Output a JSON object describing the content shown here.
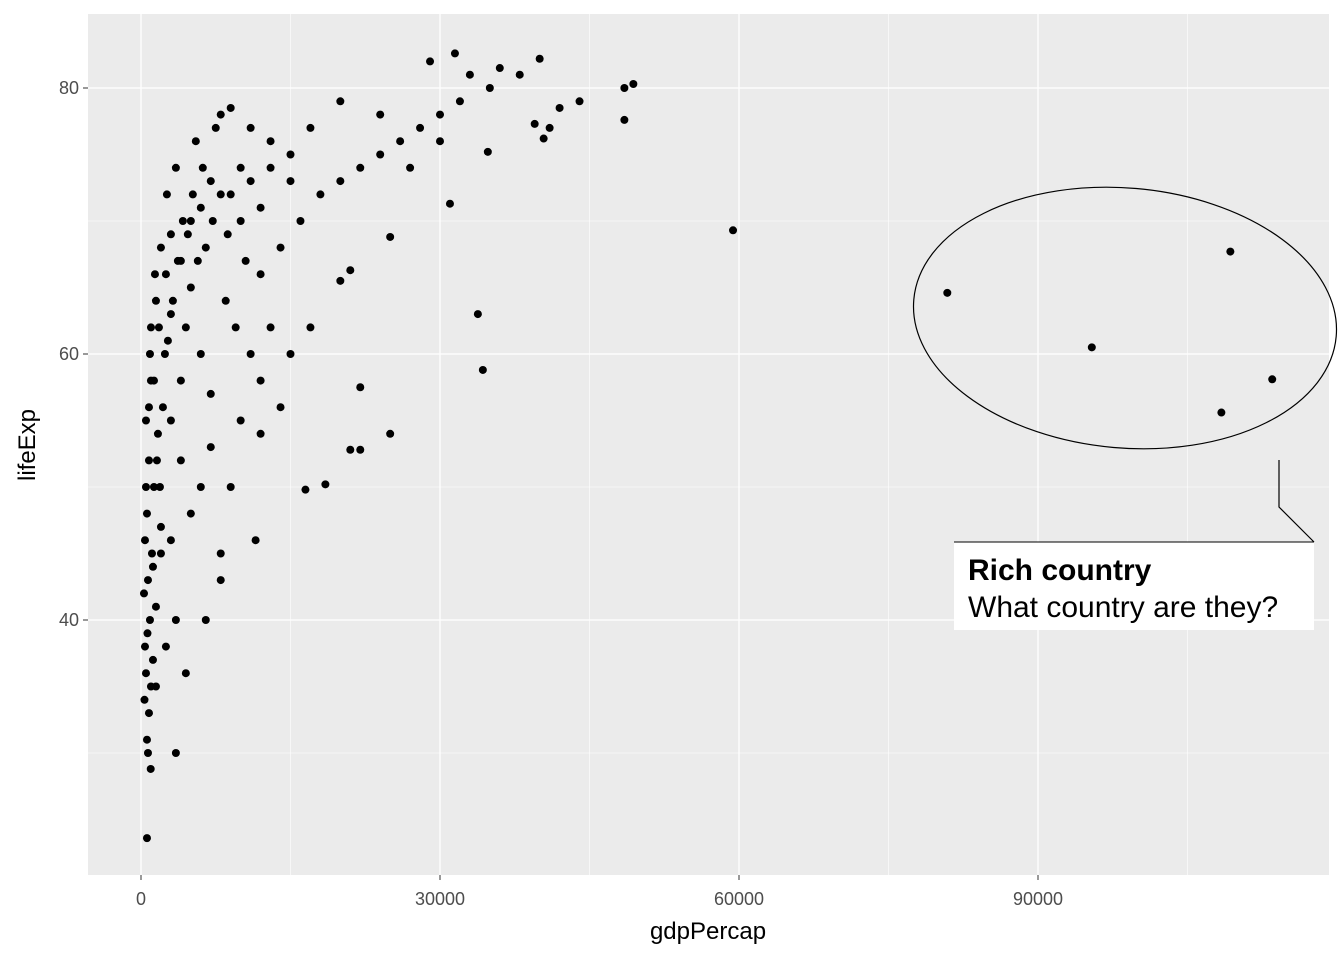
{
  "chart_data": {
    "type": "scatter",
    "xlabel": "gdpPercap",
    "ylabel": "lifeExp",
    "xlim": [
      -4000,
      120000
    ],
    "ylim": [
      22,
      85
    ],
    "grid": true,
    "x_ticks": [
      "0",
      "30000",
      "60000",
      "90000"
    ],
    "x_tick_values": [
      0,
      30000,
      60000,
      90000
    ],
    "y_ticks": [
      "40",
      "60",
      "80"
    ],
    "y_tick_values": [
      40,
      60,
      80
    ],
    "point_color": "#000000",
    "panel_background": "#ebebeb",
    "points": [
      [
        600,
        23.6
      ],
      [
        974,
        28.8
      ],
      [
        700,
        30
      ],
      [
        3500,
        30
      ],
      [
        600,
        31
      ],
      [
        800,
        33
      ],
      [
        1000,
        35
      ],
      [
        500,
        36
      ],
      [
        1200,
        37
      ],
      [
        400,
        38
      ],
      [
        900,
        40
      ],
      [
        1500,
        41
      ],
      [
        700,
        43
      ],
      [
        1100,
        45
      ],
      [
        2000,
        47
      ],
      [
        600,
        48
      ],
      [
        1300,
        50
      ],
      [
        800,
        52
      ],
      [
        1700,
        54
      ],
      [
        500,
        55
      ],
      [
        2200,
        56
      ],
      [
        1000,
        58
      ],
      [
        900,
        60
      ],
      [
        1800,
        62
      ],
      [
        3000,
        63
      ],
      [
        1500,
        64
      ],
      [
        2500,
        66
      ],
      [
        4000,
        67
      ],
      [
        3000,
        69
      ],
      [
        5000,
        70
      ],
      [
        6000,
        71
      ],
      [
        8000,
        72
      ],
      [
        7000,
        73
      ],
      [
        10000,
        74
      ],
      [
        3500,
        40
      ],
      [
        4500,
        36
      ],
      [
        6500,
        40
      ],
      [
        8000,
        43
      ],
      [
        8000,
        45
      ],
      [
        5000,
        48
      ],
      [
        6000,
        50
      ],
      [
        9000,
        50
      ],
      [
        4000,
        52
      ],
      [
        7000,
        53
      ],
      [
        10000,
        55
      ],
      [
        12000,
        54
      ],
      [
        11500,
        46
      ],
      [
        14000,
        56
      ],
      [
        15000,
        60
      ],
      [
        13000,
        62
      ],
      [
        17000,
        62
      ],
      [
        18500,
        50.2
      ],
      [
        16500,
        49.8
      ],
      [
        21000,
        52.8
      ],
      [
        22000,
        52.8
      ],
      [
        25000,
        54
      ],
      [
        22000,
        57.5
      ],
      [
        25000,
        68.8
      ],
      [
        21000,
        66.3
      ],
      [
        20000,
        65.5
      ],
      [
        33800,
        63
      ],
      [
        34300,
        58.8
      ],
      [
        31000,
        71.3
      ],
      [
        12000,
        58
      ],
      [
        9500,
        62
      ],
      [
        11000,
        60
      ],
      [
        8500,
        64
      ],
      [
        12000,
        66
      ],
      [
        14000,
        68
      ],
      [
        16000,
        70
      ],
      [
        18000,
        72
      ],
      [
        20000,
        73
      ],
      [
        22000,
        74
      ],
      [
        24000,
        75
      ],
      [
        26000,
        76
      ],
      [
        28000,
        77
      ],
      [
        30000,
        78
      ],
      [
        32000,
        79
      ],
      [
        35000,
        80
      ],
      [
        38000,
        81
      ],
      [
        40000,
        82.2
      ],
      [
        33000,
        81
      ],
      [
        29000,
        82
      ],
      [
        31500,
        82.6
      ],
      [
        36000,
        81.5
      ],
      [
        42000,
        78.5
      ],
      [
        44000,
        79
      ],
      [
        41000,
        77
      ],
      [
        48500,
        80
      ],
      [
        48500,
        77.6
      ],
      [
        49400,
        80.3
      ],
      [
        40400,
        76.2
      ],
      [
        39500,
        77.3
      ],
      [
        34800,
        75.2
      ],
      [
        27000,
        74
      ],
      [
        30000,
        76
      ],
      [
        24000,
        78
      ],
      [
        20000,
        79
      ],
      [
        17000,
        77
      ],
      [
        15000,
        75
      ],
      [
        13000,
        76
      ],
      [
        11000,
        77
      ],
      [
        9000,
        78.5
      ],
      [
        8000,
        78
      ],
      [
        10000,
        70
      ],
      [
        12000,
        71
      ],
      [
        5000,
        65
      ],
      [
        6000,
        60
      ],
      [
        7000,
        57
      ],
      [
        4000,
        58
      ],
      [
        3000,
        55
      ],
      [
        2000,
        45
      ],
      [
        1500,
        35
      ],
      [
        2500,
        38
      ],
      [
        3000,
        46
      ],
      [
        1200,
        44
      ],
      [
        800,
        56
      ],
      [
        1400,
        66
      ],
      [
        2000,
        68
      ],
      [
        2600,
        72
      ],
      [
        3500,
        74
      ],
      [
        5500,
        76
      ],
      [
        7500,
        77
      ],
      [
        6500,
        68
      ],
      [
        4500,
        62
      ],
      [
        300,
        42
      ],
      [
        400,
        46
      ],
      [
        500,
        50
      ],
      [
        650,
        39
      ],
      [
        350,
        34
      ],
      [
        1600,
        52
      ],
      [
        2400,
        60
      ],
      [
        3200,
        64
      ],
      [
        4200,
        70
      ],
      [
        5200,
        72
      ],
      [
        6200,
        74
      ],
      [
        9000,
        72
      ],
      [
        11000,
        73
      ],
      [
        13000,
        74
      ],
      [
        15000,
        73
      ],
      [
        1000,
        62
      ],
      [
        1300,
        58
      ],
      [
        1900,
        50
      ],
      [
        2700,
        61
      ],
      [
        3700,
        67
      ],
      [
        4700,
        69
      ],
      [
        5700,
        67
      ],
      [
        7200,
        70
      ],
      [
        8700,
        69
      ],
      [
        10500,
        67
      ],
      [
        59400,
        69.3
      ],
      [
        80900,
        64.6
      ],
      [
        95400,
        60.5
      ],
      [
        109300,
        67.7
      ],
      [
        113500,
        58.1
      ],
      [
        108400,
        55.6
      ]
    ],
    "annotation": {
      "title": "Rich country",
      "text": "What country are they?",
      "shape": "ellipse"
    }
  }
}
